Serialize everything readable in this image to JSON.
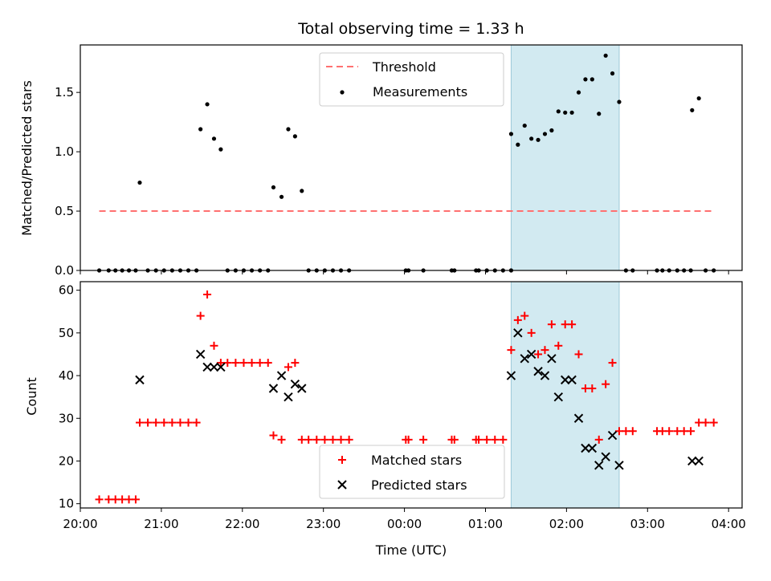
{
  "chart_data": [
    {
      "type": "scatter",
      "title": "Total observing time = 1.33 h",
      "xlabel": "",
      "ylabel": "Matched/Predicted stars",
      "ylim": [
        0,
        1.9
      ],
      "yticks": [
        0.0,
        0.5,
        1.0,
        1.5
      ],
      "ytick_labels": [
        "0.0",
        "0.5",
        "1.0",
        "1.5"
      ],
      "xlim": [
        "20:00",
        "04:10"
      ],
      "xticks": [
        "20:00",
        "21:00",
        "22:00",
        "23:00",
        "00:00",
        "01:00",
        "02:00",
        "03:00",
        "04:00"
      ],
      "legend": {
        "location": "upper center",
        "entries": [
          "Threshold",
          "Measurements"
        ]
      },
      "shaded_interval": {
        "x": [
          "01:19",
          "02:39"
        ],
        "color": "#add8e6"
      },
      "threshold": {
        "name": "Threshold",
        "value": 0.5,
        "x": [
          "20:14",
          "03:50"
        ],
        "color": "#ff7070",
        "style": "dashed"
      },
      "series": [
        {
          "name": "Measurements",
          "color": "#000000",
          "marker": "dot",
          "points": [
            [
              "20:14",
              0.0
            ],
            [
              "20:21",
              0.0
            ],
            [
              "20:26",
              0.0
            ],
            [
              "20:31",
              0.0
            ],
            [
              "20:36",
              0.0
            ],
            [
              "20:41",
              0.0
            ],
            [
              "20:44",
              0.74
            ],
            [
              "20:50",
              0.0
            ],
            [
              "20:56",
              0.0
            ],
            [
              "21:02",
              0.0
            ],
            [
              "21:08",
              0.0
            ],
            [
              "21:14",
              0.0
            ],
            [
              "21:20",
              0.0
            ],
            [
              "21:26",
              0.0
            ],
            [
              "21:29",
              1.19
            ],
            [
              "21:34",
              1.4
            ],
            [
              "21:39",
              1.11
            ],
            [
              "21:44",
              1.02
            ],
            [
              "21:49",
              0.0
            ],
            [
              "21:55",
              0.0
            ],
            [
              "22:01",
              0.0
            ],
            [
              "22:07",
              0.0
            ],
            [
              "22:13",
              0.0
            ],
            [
              "22:19",
              0.0
            ],
            [
              "22:23",
              0.7
            ],
            [
              "22:29",
              0.62
            ],
            [
              "22:34",
              1.19
            ],
            [
              "22:39",
              1.13
            ],
            [
              "22:44",
              0.67
            ],
            [
              "22:49",
              0.0
            ],
            [
              "22:55",
              0.0
            ],
            [
              "23:01",
              0.0
            ],
            [
              "23:07",
              0.0
            ],
            [
              "23:13",
              0.0
            ],
            [
              "23:19",
              0.0
            ],
            [
              "00:01",
              0.0
            ],
            [
              "00:03",
              0.0
            ],
            [
              "00:14",
              0.0
            ],
            [
              "00:35",
              0.0
            ],
            [
              "00:37",
              0.0
            ],
            [
              "00:53",
              0.0
            ],
            [
              "00:55",
              0.0
            ],
            [
              "01:01",
              0.0
            ],
            [
              "01:07",
              0.0
            ],
            [
              "01:13",
              0.0
            ],
            [
              "01:19",
              0.0
            ],
            [
              "01:19",
              1.15
            ],
            [
              "01:24",
              1.06
            ],
            [
              "01:29",
              1.22
            ],
            [
              "01:34",
              1.11
            ],
            [
              "01:39",
              1.1
            ],
            [
              "01:44",
              1.15
            ],
            [
              "01:49",
              1.18
            ],
            [
              "01:54",
              1.34
            ],
            [
              "01:59",
              1.33
            ],
            [
              "02:04",
              1.33
            ],
            [
              "02:09",
              1.5
            ],
            [
              "02:14",
              1.61
            ],
            [
              "02:19",
              1.61
            ],
            [
              "02:24",
              1.32
            ],
            [
              "02:29",
              1.81
            ],
            [
              "02:34",
              1.66
            ],
            [
              "02:39",
              1.42
            ],
            [
              "02:44",
              0.0
            ],
            [
              "02:49",
              0.0
            ],
            [
              "03:07",
              0.0
            ],
            [
              "03:11",
              0.0
            ],
            [
              "03:16",
              0.0
            ],
            [
              "03:22",
              0.0
            ],
            [
              "03:27",
              0.0
            ],
            [
              "03:32",
              0.0
            ],
            [
              "03:33",
              1.35
            ],
            [
              "03:38",
              1.45
            ],
            [
              "03:43",
              0.0
            ],
            [
              "03:49",
              0.0
            ]
          ]
        }
      ]
    },
    {
      "type": "scatter",
      "title": "",
      "xlabel": "Time (UTC)",
      "ylabel": "Count",
      "ylim": [
        9,
        62
      ],
      "yticks": [
        10,
        20,
        30,
        40,
        50,
        60
      ],
      "ytick_labels": [
        "10",
        "20",
        "30",
        "40",
        "50",
        "60"
      ],
      "xlim": [
        "20:00",
        "04:10"
      ],
      "xticks": [
        "20:00",
        "21:00",
        "22:00",
        "23:00",
        "00:00",
        "01:00",
        "02:00",
        "03:00",
        "04:00"
      ],
      "xtick_labels": [
        "20:00",
        "21:00",
        "22:00",
        "23:00",
        "00:00",
        "01:00",
        "02:00",
        "03:00",
        "04:00"
      ],
      "legend": {
        "location": "lower center",
        "entries": [
          "Matched stars",
          "Predicted stars"
        ]
      },
      "shaded_interval": {
        "x": [
          "01:19",
          "02:39"
        ],
        "color": "#add8e6"
      },
      "series": [
        {
          "name": "Matched stars",
          "color": "#ff0000",
          "marker": "plus",
          "points": [
            [
              "20:14",
              11
            ],
            [
              "20:21",
              11
            ],
            [
              "20:26",
              11
            ],
            [
              "20:31",
              11
            ],
            [
              "20:36",
              11
            ],
            [
              "20:41",
              11
            ],
            [
              "20:44",
              29
            ],
            [
              "20:50",
              29
            ],
            [
              "20:56",
              29
            ],
            [
              "21:02",
              29
            ],
            [
              "21:08",
              29
            ],
            [
              "21:14",
              29
            ],
            [
              "21:20",
              29
            ],
            [
              "21:26",
              29
            ],
            [
              "21:29",
              54
            ],
            [
              "21:34",
              59
            ],
            [
              "21:39",
              47
            ],
            [
              "21:44",
              43
            ],
            [
              "21:49",
              43
            ],
            [
              "21:55",
              43
            ],
            [
              "22:01",
              43
            ],
            [
              "22:07",
              43
            ],
            [
              "22:13",
              43
            ],
            [
              "22:19",
              43
            ],
            [
              "22:23",
              26
            ],
            [
              "22:29",
              25
            ],
            [
              "22:34",
              42
            ],
            [
              "22:39",
              43
            ],
            [
              "22:44",
              25
            ],
            [
              "22:49",
              25
            ],
            [
              "22:55",
              25
            ],
            [
              "23:01",
              25
            ],
            [
              "23:07",
              25
            ],
            [
              "23:13",
              25
            ],
            [
              "23:19",
              25
            ],
            [
              "00:01",
              25
            ],
            [
              "00:03",
              25
            ],
            [
              "00:14",
              25
            ],
            [
              "00:35",
              25
            ],
            [
              "00:37",
              25
            ],
            [
              "00:53",
              25
            ],
            [
              "00:55",
              25
            ],
            [
              "01:01",
              25
            ],
            [
              "01:07",
              25
            ],
            [
              "01:13",
              25
            ],
            [
              "01:19",
              46
            ],
            [
              "01:24",
              53
            ],
            [
              "01:29",
              54
            ],
            [
              "01:34",
              50
            ],
            [
              "01:39",
              45
            ],
            [
              "01:44",
              46
            ],
            [
              "01:49",
              52
            ],
            [
              "01:54",
              47
            ],
            [
              "01:59",
              52
            ],
            [
              "02:04",
              52
            ],
            [
              "02:09",
              45
            ],
            [
              "02:14",
              37
            ],
            [
              "02:19",
              37
            ],
            [
              "02:24",
              25
            ],
            [
              "02:29",
              38
            ],
            [
              "02:34",
              43
            ],
            [
              "02:39",
              27
            ],
            [
              "02:44",
              27
            ],
            [
              "02:49",
              27
            ],
            [
              "03:07",
              27
            ],
            [
              "03:11",
              27
            ],
            [
              "03:16",
              27
            ],
            [
              "03:22",
              27
            ],
            [
              "03:27",
              27
            ],
            [
              "03:32",
              27
            ],
            [
              "03:38",
              29
            ],
            [
              "03:43",
              29
            ],
            [
              "03:49",
              29
            ]
          ]
        },
        {
          "name": "Predicted stars",
          "color": "#000000",
          "marker": "x",
          "points": [
            [
              "20:44",
              39
            ],
            [
              "21:29",
              45
            ],
            [
              "21:34",
              42
            ],
            [
              "21:39",
              42
            ],
            [
              "21:44",
              42
            ],
            [
              "22:23",
              37
            ],
            [
              "22:29",
              40
            ],
            [
              "22:34",
              35
            ],
            [
              "22:39",
              38
            ],
            [
              "22:44",
              37
            ],
            [
              "01:19",
              40
            ],
            [
              "01:24",
              50
            ],
            [
              "01:29",
              44
            ],
            [
              "01:34",
              45
            ],
            [
              "01:39",
              41
            ],
            [
              "01:44",
              40
            ],
            [
              "01:49",
              44
            ],
            [
              "01:54",
              35
            ],
            [
              "01:59",
              39
            ],
            [
              "02:04",
              39
            ],
            [
              "02:09",
              30
            ],
            [
              "02:14",
              23
            ],
            [
              "02:19",
              23
            ],
            [
              "02:24",
              19
            ],
            [
              "02:29",
              21
            ],
            [
              "02:34",
              26
            ],
            [
              "02:39",
              19
            ],
            [
              "03:33",
              20
            ],
            [
              "03:38",
              20
            ]
          ]
        }
      ]
    }
  ]
}
